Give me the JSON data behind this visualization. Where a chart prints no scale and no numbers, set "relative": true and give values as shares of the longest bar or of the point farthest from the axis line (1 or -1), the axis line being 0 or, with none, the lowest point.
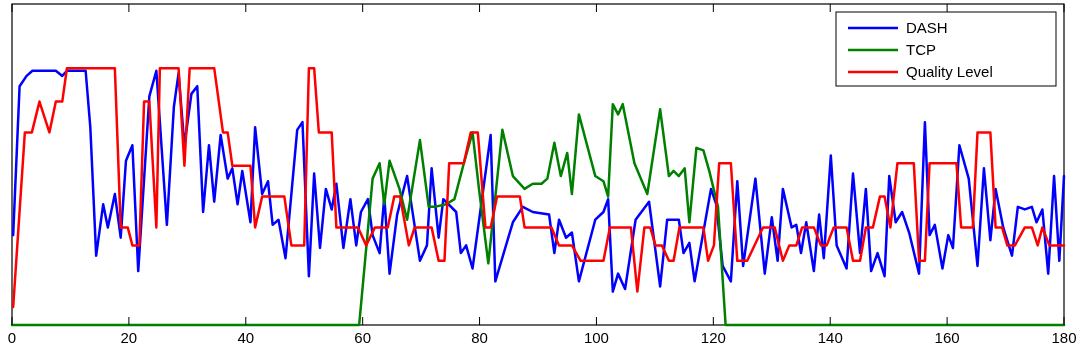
{
  "chart_data": {
    "type": "line",
    "relative": true,
    "xlim": [
      0,
      180
    ],
    "xticks": [
      0,
      20,
      40,
      60,
      80,
      100,
      120,
      140,
      160,
      180
    ],
    "legend": "top right",
    "grid": false,
    "line_style": "solid",
    "series": [
      {
        "name": "DASH",
        "color": "#0000ff",
        "x": [
          0.2,
          1.3,
          2.5,
          3.5,
          7.5,
          8.6,
          9.4,
          12.6,
          13.4,
          14.4,
          15.6,
          16.4,
          17.6,
          18.6,
          19.5,
          20.6,
          21.6,
          23.5,
          24.7,
          26.5,
          27.7,
          28.5,
          29.5,
          30.7,
          31.7,
          32.7,
          33.7,
          34.6,
          35.7,
          36.9,
          37.7,
          38.6,
          39.4,
          40.8,
          41.6,
          42.8,
          43.8,
          44.6,
          45.6,
          46.8,
          48.8,
          49.7,
          50.8,
          51.7,
          52.7,
          53.7,
          54.7,
          55.5,
          56.7,
          57.9,
          58.9,
          59.7,
          60.9,
          61.7,
          62.9,
          63.7,
          64.6,
          65.9,
          67.6,
          68.4,
          69.8,
          71.0,
          71.8,
          73.0,
          73.8,
          76.0,
          76.8,
          77.7,
          78.8,
          81.9,
          82.7,
          85.7,
          87.4,
          89.1,
          91.9,
          92.8,
          93.6,
          94.8,
          95.8,
          97.0,
          99.8,
          101.2,
          102.0,
          102.8,
          103.7,
          104.9,
          106.7,
          109.0,
          110.9,
          112.1,
          114.1,
          114.9,
          115.9,
          116.8,
          119.6,
          120.5,
          121.6,
          123.0,
          124.1,
          125.1,
          127.2,
          128.8,
          130.0,
          131.0,
          131.9,
          133.4,
          134.2,
          135.0,
          135.9,
          137.2,
          138.1,
          138.9,
          140.1,
          141.1,
          142.8,
          143.9,
          145.1,
          146.1,
          147.0,
          148.1,
          149.3,
          150.1,
          151.2,
          152.3,
          153.5,
          155.2,
          156.2,
          157.0,
          157.9,
          159.2,
          160.2,
          161.0,
          162.1,
          163.7,
          165.2,
          166.3,
          167.4,
          168.3,
          169.6,
          171.1,
          172.1,
          173.3,
          174.5,
          175.3,
          176.3,
          177.3,
          178.3,
          179.2,
          180.0
        ],
        "values": [
          0.35,
          0.93,
          0.97,
          0.99,
          0.99,
          0.97,
          0.99,
          0.99,
          0.77,
          0.27,
          0.47,
          0.38,
          0.51,
          0.34,
          0.64,
          0.7,
          0.21,
          0.89,
          0.99,
          0.39,
          0.85,
          0.98,
          0.7,
          0.9,
          0.93,
          0.44,
          0.7,
          0.48,
          0.74,
          0.57,
          0.61,
          0.47,
          0.6,
          0.4,
          0.77,
          0.51,
          0.56,
          0.39,
          0.41,
          0.26,
          0.76,
          0.79,
          0.19,
          0.59,
          0.3,
          0.53,
          0.45,
          0.55,
          0.3,
          0.49,
          0.31,
          0.44,
          0.49,
          0.35,
          0.28,
          0.5,
          0.2,
          0.43,
          0.58,
          0.46,
          0.25,
          0.31,
          0.61,
          0.34,
          0.49,
          0.44,
          0.28,
          0.31,
          0.22,
          0.74,
          0.17,
          0.4,
          0.46,
          0.44,
          0.43,
          0.28,
          0.41,
          0.34,
          0.36,
          0.17,
          0.41,
          0.44,
          0.49,
          0.13,
          0.2,
          0.14,
          0.41,
          0.48,
          0.15,
          0.41,
          0.41,
          0.28,
          0.32,
          0.17,
          0.53,
          0.47,
          0.23,
          0.17,
          0.56,
          0.23,
          0.57,
          0.2,
          0.42,
          0.25,
          0.53,
          0.38,
          0.39,
          0.28,
          0.4,
          0.21,
          0.43,
          0.26,
          0.66,
          0.31,
          0.22,
          0.59,
          0.28,
          0.53,
          0.21,
          0.28,
          0.19,
          0.58,
          0.4,
          0.44,
          0.36,
          0.2,
          0.79,
          0.35,
          0.39,
          0.22,
          0.35,
          0.3,
          0.7,
          0.57,
          0.23,
          0.61,
          0.33,
          0.53,
          0.38,
          0.27,
          0.46,
          0.45,
          0.46,
          0.4,
          0.45,
          0.2,
          0.58,
          0.25,
          0.58
        ]
      },
      {
        "name": "TCP",
        "color": "#008000",
        "x": [
          0,
          59.4,
          61.7,
          62.9,
          63.7,
          64.6,
          66.3,
          67.6,
          69.8,
          71.3,
          72.3,
          74.3,
          75.7,
          77.2,
          78.8,
          79.9,
          81.5,
          83.9,
          85.7,
          87.7,
          89.1,
          90.6,
          91.6,
          92.8,
          93.9,
          95.0,
          95.8,
          97.0,
          99.8,
          101.2,
          102.0,
          102.8,
          103.7,
          104.5,
          106.5,
          108.7,
          110.9,
          112.4,
          113.2,
          114.1,
          115.1,
          115.9,
          117.1,
          118.3,
          119.3,
          120.8,
          122.1,
          180
        ],
        "values": [
          0,
          0,
          0.57,
          0.63,
          0.47,
          0.64,
          0.53,
          0.41,
          0.72,
          0.46,
          0.46,
          0.47,
          0.49,
          0.62,
          0.75,
          0.53,
          0.24,
          0.76,
          0.58,
          0.53,
          0.55,
          0.55,
          0.57,
          0.71,
          0.58,
          0.67,
          0.51,
          0.82,
          0.58,
          0.56,
          0.5,
          0.86,
          0.82,
          0.86,
          0.63,
          0.51,
          0.84,
          0.58,
          0.6,
          0.58,
          0.61,
          0.4,
          0.69,
          0.68,
          0.6,
          0.46,
          0,
          0
        ]
      },
      {
        "name": "Quality Level",
        "color": "#ff0000",
        "x": [
          0.2,
          2.2,
          3.4,
          4.7,
          6.4,
          7.5,
          8.6,
          9.4,
          17.6,
          18.6,
          19.8,
          20.6,
          21.8,
          22.6,
          23.5,
          24.7,
          25.3,
          28.5,
          29.5,
          30.4,
          34.6,
          36.1,
          36.9,
          37.7,
          40.8,
          41.6,
          42.8,
          46.6,
          47.8,
          50.0,
          50.8,
          51.7,
          52.5,
          54.7,
          55.5,
          59.2,
          60.6,
          62.1,
          64.3,
          65.4,
          66.4,
          67.9,
          68.9,
          71.8,
          73.0,
          74.0,
          74.8,
          77.3,
          78.5,
          79.7,
          81.0,
          81.9,
          83.0,
          86.9,
          87.7,
          92.3,
          93.6,
          95.8,
          97.3,
          101.2,
          102.3,
          105.9,
          107.0,
          108.2,
          109.2,
          110.1,
          111.2,
          112.4,
          113.2,
          114.2,
          118.3,
          119.1,
          120.1,
          121.0,
          123.0,
          124.1,
          125.8,
          128.5,
          130.5,
          131.9,
          133.0,
          134.2,
          135.2,
          137.2,
          138.4,
          139.4,
          140.6,
          142.8,
          143.9,
          145.1,
          146.1,
          147.3,
          148.5,
          149.3,
          150.3,
          151.5,
          154.3,
          155.2,
          156.2,
          157.0,
          161.6,
          162.4,
          164.4,
          165.2,
          167.4,
          168.3,
          169.4,
          170.3,
          171.6,
          173.3,
          174.5,
          175.5,
          176.3,
          177.5,
          180.0
        ],
        "values": [
          0.07,
          0.75,
          0.75,
          0.87,
          0.75,
          0.87,
          0.87,
          1.0,
          1.0,
          0.38,
          0.38,
          0.31,
          0.31,
          0.87,
          0.87,
          0.38,
          1.0,
          1.0,
          0.62,
          1.0,
          1.0,
          0.75,
          0.75,
          0.62,
          0.62,
          0.38,
          0.5,
          0.5,
          0.31,
          0.31,
          1.0,
          1.0,
          0.75,
          0.75,
          0.38,
          0.38,
          0.31,
          0.38,
          0.38,
          0.5,
          0.5,
          0.31,
          0.38,
          0.38,
          0.25,
          0.25,
          0.63,
          0.63,
          0.75,
          0.75,
          0.38,
          0.38,
          0.5,
          0.5,
          0.38,
          0.38,
          0.31,
          0.31,
          0.25,
          0.25,
          0.38,
          0.38,
          0.13,
          0.38,
          0.38,
          0.31,
          0.31,
          0.25,
          0.25,
          0.38,
          0.38,
          0.25,
          0.31,
          0.63,
          0.63,
          0.25,
          0.25,
          0.38,
          0.38,
          0.25,
          0.31,
          0.31,
          0.38,
          0.38,
          0.31,
          0.31,
          0.38,
          0.38,
          0.25,
          0.25,
          0.38,
          0.38,
          0.5,
          0.5,
          0.38,
          0.63,
          0.63,
          0.25,
          0.25,
          0.63,
          0.63,
          0.38,
          0.38,
          0.75,
          0.75,
          0.38,
          0.38,
          0.31,
          0.31,
          0.38,
          0.38,
          0.31,
          0.38,
          0.31,
          0.31
        ]
      }
    ]
  }
}
